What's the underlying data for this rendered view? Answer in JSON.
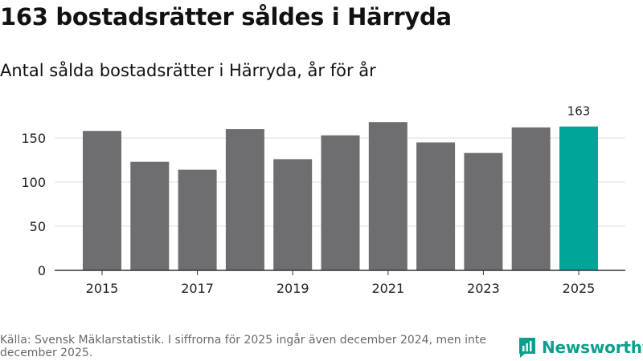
{
  "title": "163 bostadsrätter såldes i Härryda",
  "subtitle": "Antal sålda bostadsrätter i Härryda, år för år",
  "footer": {
    "source": "Källa: Svensk Mäklarstatistik. I siffrorna för 2025 ingår även december 2024, men inte december 2025."
  },
  "logo": {
    "brand": "Newsworthy"
  },
  "colors": {
    "bar": "#6e6d72",
    "highlight": "#00a59a",
    "grid": "#dddddd",
    "axis": "#333333",
    "text": "#111111",
    "brand": "#0e9e8e"
  },
  "chart_data": {
    "type": "bar",
    "title": "Antal sålda bostadsrätter i Härryda, år för år",
    "categories": [
      "2015",
      "2016",
      "2017",
      "2018",
      "2019",
      "2020",
      "2021",
      "2022",
      "2023",
      "2024",
      "2025"
    ],
    "values": [
      158,
      123,
      114,
      160,
      126,
      153,
      168,
      145,
      133,
      162,
      163
    ],
    "highlight_index": 10,
    "value_label": "163",
    "x_tick_labels": [
      "2015",
      "2017",
      "2019",
      "2021",
      "2023",
      "2025"
    ],
    "y_ticks": [
      0,
      50,
      100,
      150
    ],
    "y_tick_labels": [
      "0",
      "50",
      "100",
      "150"
    ],
    "ylim": [
      0,
      170
    ],
    "xlabel": "",
    "ylabel": "",
    "grid": true
  }
}
